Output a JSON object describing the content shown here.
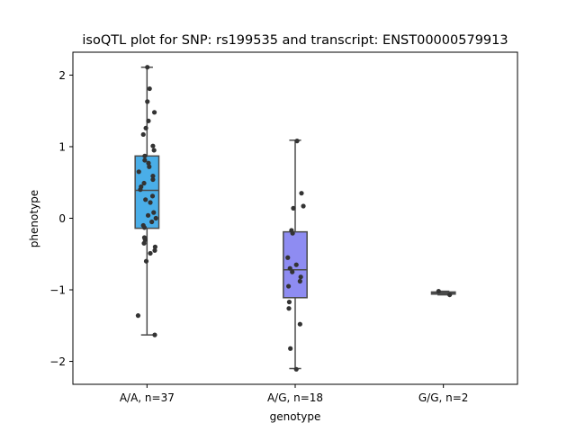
{
  "chart_data": {
    "type": "boxplot",
    "title": "isoQTL plot for SNP: rs199535 and transcript: ENST00000579913",
    "xlabel": "genotype",
    "ylabel": "phenotype",
    "ylim": [
      -2.32,
      2.32
    ],
    "yticks": [
      {
        "value": 2,
        "label": "2"
      },
      {
        "value": 1,
        "label": "1"
      },
      {
        "value": 0,
        "label": "0"
      },
      {
        "value": -1,
        "label": "−1"
      },
      {
        "value": -2,
        "label": "−2"
      }
    ],
    "grid": false,
    "categories": [
      "A/A, n=37",
      "A/G, n=18",
      "G/G, n=2"
    ],
    "boxes": [
      {
        "category": "A/A, n=37",
        "color": "#4aaee8",
        "q1": -0.14,
        "median": 0.39,
        "q3": 0.87,
        "whisker_low": -1.63,
        "whisker_high": 2.11,
        "points": [
          {
            "x": 0.01,
            "y": 2.11
          },
          {
            "x": 0.07,
            "y": 1.81
          },
          {
            "x": 0.01,
            "y": 1.63
          },
          {
            "x": 0.2,
            "y": 1.48
          },
          {
            "x": 0.04,
            "y": 1.36
          },
          {
            "x": -0.03,
            "y": 1.26
          },
          {
            "x": -0.1,
            "y": 1.17
          },
          {
            "x": 0.16,
            "y": 1.01
          },
          {
            "x": 0.19,
            "y": 0.95
          },
          {
            "x": -0.06,
            "y": 0.87
          },
          {
            "x": -0.06,
            "y": 0.81
          },
          {
            "x": 0.04,
            "y": 0.77
          },
          {
            "x": 0.06,
            "y": 0.72
          },
          {
            "x": -0.22,
            "y": 0.65
          },
          {
            "x": 0.16,
            "y": 0.59
          },
          {
            "x": 0.16,
            "y": 0.54
          },
          {
            "x": -0.08,
            "y": 0.49
          },
          {
            "x": -0.16,
            "y": 0.44
          },
          {
            "x": -0.18,
            "y": 0.4
          },
          {
            "x": 0.15,
            "y": 0.31
          },
          {
            "x": -0.04,
            "y": 0.26
          },
          {
            "x": 0.09,
            "y": 0.22
          },
          {
            "x": 0.18,
            "y": 0.08
          },
          {
            "x": 0.03,
            "y": 0.04
          },
          {
            "x": 0.24,
            "y": 0.0
          },
          {
            "x": 0.13,
            "y": -0.05
          },
          {
            "x": -0.1,
            "y": -0.1
          },
          {
            "x": -0.07,
            "y": -0.13
          },
          {
            "x": -0.07,
            "y": -0.27
          },
          {
            "x": -0.05,
            "y": -0.3
          },
          {
            "x": -0.08,
            "y": -0.35
          },
          {
            "x": 0.22,
            "y": -0.4
          },
          {
            "x": 0.21,
            "y": -0.45
          },
          {
            "x": 0.09,
            "y": -0.49
          },
          {
            "x": -0.02,
            "y": -0.6
          },
          {
            "x": -0.24,
            "y": -1.36
          },
          {
            "x": 0.21,
            "y": -1.63
          }
        ]
      },
      {
        "category": "A/G, n=18",
        "color": "#8e8cf2",
        "q1": -1.11,
        "median": -0.72,
        "q3": -0.19,
        "whisker_low": -2.1,
        "whisker_high": 1.09,
        "points": [
          {
            "x": 0.05,
            "y": 1.08
          },
          {
            "x": 0.17,
            "y": 0.35
          },
          {
            "x": 0.22,
            "y": 0.17
          },
          {
            "x": -0.05,
            "y": 0.14
          },
          {
            "x": -0.1,
            "y": -0.17
          },
          {
            "x": -0.07,
            "y": -0.21
          },
          {
            "x": -0.2,
            "y": -0.55
          },
          {
            "x": 0.03,
            "y": -0.65
          },
          {
            "x": -0.14,
            "y": -0.7
          },
          {
            "x": -0.08,
            "y": -0.75
          },
          {
            "x": 0.15,
            "y": -0.82
          },
          {
            "x": 0.13,
            "y": -0.88
          },
          {
            "x": -0.18,
            "y": -0.95
          },
          {
            "x": -0.16,
            "y": -1.17
          },
          {
            "x": -0.17,
            "y": -1.26
          },
          {
            "x": 0.13,
            "y": -1.48
          },
          {
            "x": -0.13,
            "y": -1.82
          },
          {
            "x": 0.03,
            "y": -2.11
          }
        ]
      },
      {
        "category": "G/G, n=2",
        "color": "#7ad9a6",
        "q1": -1.06,
        "median": -1.045,
        "q3": -1.03,
        "whisker_low": -1.07,
        "whisker_high": -1.02,
        "points": [
          {
            "x": -0.13,
            "y": -1.02
          },
          {
            "x": 0.17,
            "y": -1.07
          }
        ]
      }
    ]
  }
}
